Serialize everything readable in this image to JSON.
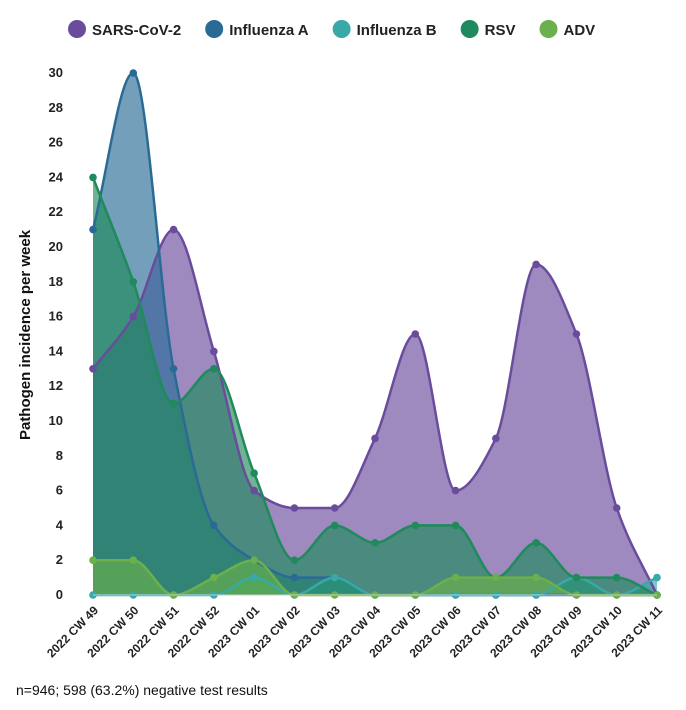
{
  "chart_data": {
    "type": "area",
    "title": "",
    "xlabel": "",
    "ylabel": "Pathogen incidence per week",
    "ylim": [
      0,
      30
    ],
    "yticks": [
      0,
      2,
      4,
      6,
      8,
      10,
      12,
      14,
      16,
      18,
      20,
      22,
      24,
      26,
      28,
      30
    ],
    "grid": false,
    "legend_position": "top",
    "categories": [
      "2022 CW 49",
      "2022 CW 50",
      "2022 CW 51",
      "2022 CW 52",
      "2023 CW 01",
      "2023 CW 02",
      "2023 CW 03",
      "2023 CW 04",
      "2023 CW 05",
      "2023 CW 06",
      "2023 CW 07",
      "2023 CW 08",
      "2023 CW 09",
      "2023 CW 10",
      "2023 CW 11"
    ],
    "series": [
      {
        "name": "SARS-CoV-2",
        "color": "#6a4c9c",
        "values": [
          13,
          16,
          21,
          14,
          6,
          5,
          5,
          9,
          15,
          6,
          9,
          19,
          15,
          5,
          0
        ]
      },
      {
        "name": "Influenza A",
        "color": "#2a6b96",
        "values": [
          21,
          30,
          13,
          4,
          2,
          1,
          1,
          0,
          0,
          0,
          0,
          0,
          0,
          0,
          0
        ]
      },
      {
        "name": "Influenza B",
        "color": "#38a9a9",
        "values": [
          0,
          0,
          0,
          0,
          1,
          0,
          1,
          0,
          0,
          0,
          0,
          0,
          1,
          0,
          1
        ]
      },
      {
        "name": "RSV",
        "color": "#1f8a5b",
        "values": [
          24,
          18,
          11,
          13,
          7,
          2,
          4,
          3,
          4,
          4,
          1,
          3,
          1,
          1,
          0
        ]
      },
      {
        "name": "ADV",
        "color": "#6ab04c",
        "values": [
          2,
          2,
          0,
          1,
          2,
          0,
          0,
          0,
          0,
          1,
          1,
          1,
          0,
          0,
          0
        ]
      }
    ]
  },
  "footnote": "n=946; 598 (63.2%) negative test results"
}
